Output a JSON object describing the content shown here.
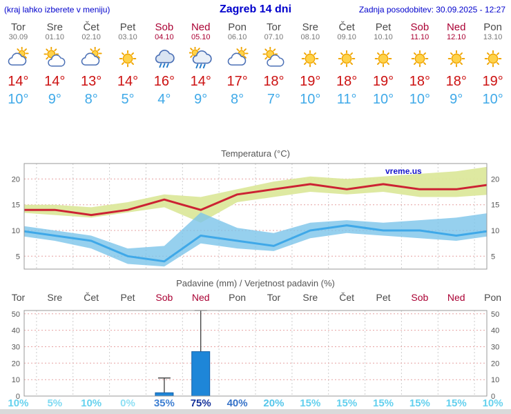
{
  "header": {
    "left_note": "(kraj lahko izberete v meniju)",
    "title": "Zagreb 14 dni",
    "last_update": "Zadnja posodobitev: 30.09.2025 - 12:27"
  },
  "watermark": "vreme.us",
  "colors": {
    "header_blue": "#0000CC",
    "weekend_red": "#AA0033",
    "day_gray": "#4A4A4A",
    "date_gray": "#777777",
    "tmax_red": "#CC1111",
    "tmin_blue": "#3FA9E8",
    "chart_title_gray": "#555555",
    "grid_pink": "#E6A0A0",
    "grid_gray": "#CCCCCC",
    "temp_max_line": "#CC2233",
    "temp_min_line": "#3FA8E8",
    "temp_max_band": "#DCE89C",
    "temp_min_band": "#7CC4EA",
    "precip_bar": "#1E86D8",
    "precip_bar_border": "#1360A8",
    "whisker": "#3A3A3A",
    "axis_text": "#555555",
    "plot_border": "#999999",
    "watermark_blue": "#1414CC"
  },
  "days": [
    {
      "name": "Tor",
      "date": "30.09",
      "weekend": false,
      "icon": "mostly-cloudy",
      "tmax_label": "14°",
      "tmin_label": "10°",
      "prob_label": "10%",
      "prob_color": "#66D2EE"
    },
    {
      "name": "Sre",
      "date": "01.10",
      "weekend": false,
      "icon": "partly-cloudy",
      "tmax_label": "14°",
      "tmin_label": "9°",
      "prob_label": "5%",
      "prob_color": "#7FDAF2"
    },
    {
      "name": "Čet",
      "date": "02.10",
      "weekend": false,
      "icon": "mostly-cloudy",
      "tmax_label": "13°",
      "tmin_label": "8°",
      "prob_label": "10%",
      "prob_color": "#66D2EE"
    },
    {
      "name": "Pet",
      "date": "03.10",
      "weekend": false,
      "icon": "sunny",
      "tmax_label": "14°",
      "tmin_label": "5°",
      "prob_label": "0%",
      "prob_color": "#8FE0F4"
    },
    {
      "name": "Sob",
      "date": "04.10",
      "weekend": true,
      "icon": "rain",
      "tmax_label": "16°",
      "tmin_label": "4°",
      "prob_label": "35%",
      "prob_color": "#3E7FD2"
    },
    {
      "name": "Ned",
      "date": "05.10",
      "weekend": true,
      "icon": "rain-sun",
      "tmax_label": "14°",
      "tmin_label": "9°",
      "prob_label": "75%",
      "prob_color": "#16339B"
    },
    {
      "name": "Pon",
      "date": "06.10",
      "weekend": false,
      "icon": "mostly-cloudy",
      "tmax_label": "17°",
      "tmin_label": "8°",
      "prob_label": "40%",
      "prob_color": "#3572C8"
    },
    {
      "name": "Tor",
      "date": "07.10",
      "weekend": false,
      "icon": "partly-cloudy",
      "tmax_label": "18°",
      "tmin_label": "7°",
      "prob_label": "20%",
      "prob_color": "#55C6EA"
    },
    {
      "name": "Sre",
      "date": "08.10",
      "weekend": false,
      "icon": "sunny",
      "tmax_label": "19°",
      "tmin_label": "10°",
      "prob_label": "15%",
      "prob_color": "#63D0EE"
    },
    {
      "name": "Čet",
      "date": "09.10",
      "weekend": false,
      "icon": "sunny",
      "tmax_label": "18°",
      "tmin_label": "11°",
      "prob_label": "15%",
      "prob_color": "#63D0EE"
    },
    {
      "name": "Pet",
      "date": "10.10",
      "weekend": false,
      "icon": "sunny",
      "tmax_label": "19°",
      "tmin_label": "10°",
      "prob_label": "15%",
      "prob_color": "#63D0EE"
    },
    {
      "name": "Sob",
      "date": "11.10",
      "weekend": true,
      "icon": "sunny",
      "tmax_label": "18°",
      "tmin_label": "10°",
      "prob_label": "15%",
      "prob_color": "#63D0EE"
    },
    {
      "name": "Ned",
      "date": "12.10",
      "weekend": true,
      "icon": "sunny",
      "tmax_label": "18°",
      "tmin_label": "9°",
      "prob_label": "15%",
      "prob_color": "#63D0EE"
    },
    {
      "name": "Pon",
      "date": "13.10",
      "weekend": false,
      "icon": "sunny",
      "tmax_label": "19°",
      "tmin_label": "10°",
      "prob_label": "10%",
      "prob_color": "#66D2EE"
    }
  ],
  "chart_data": [
    {
      "type": "line",
      "title": "Temperatura (°C)",
      "x": [
        "Tor 30.09",
        "Sre 01.10",
        "Čet 02.10",
        "Pet 03.10",
        "Sob 04.10",
        "Ned 05.10",
        "Pon 06.10",
        "Tor 07.10",
        "Sre 08.10",
        "Čet 09.10",
        "Pet 10.10",
        "Sob 11.10",
        "Ned 12.10",
        "Pon 13.10"
      ],
      "ylim": [
        2.5,
        23
      ],
      "yticks": [
        5,
        10,
        15,
        20
      ],
      "grid": true,
      "legend": "none",
      "watermark": "vreme.us",
      "series": [
        {
          "name": "max",
          "values": [
            14,
            14,
            13,
            14,
            16,
            14,
            17,
            18,
            19,
            18,
            19,
            18,
            18,
            19
          ]
        },
        {
          "name": "max_range_upper",
          "values": [
            15,
            15,
            14.5,
            15.5,
            17,
            16.5,
            18,
            19.5,
            20.5,
            20,
            20.5,
            21,
            21.5,
            22.5
          ]
        },
        {
          "name": "max_range_lower",
          "values": [
            13.5,
            13,
            12.5,
            13.5,
            14.5,
            11.5,
            15.5,
            16.5,
            17.5,
            17,
            17.5,
            16.5,
            16.5,
            17
          ]
        },
        {
          "name": "min",
          "values": [
            10,
            9,
            8,
            5,
            4,
            9,
            8,
            7,
            10,
            11,
            10,
            10,
            9,
            10
          ]
        },
        {
          "name": "min_range_upper",
          "values": [
            11,
            10,
            9,
            6.5,
            7,
            13.5,
            10.5,
            9.5,
            11.5,
            12,
            11.5,
            12,
            12.5,
            13.5
          ]
        },
        {
          "name": "min_range_lower",
          "values": [
            9,
            8,
            6.5,
            3.5,
            3,
            7.5,
            6.5,
            6,
            8.5,
            9.5,
            9,
            8.5,
            8,
            9
          ]
        }
      ]
    },
    {
      "type": "bar",
      "title": "Padavine (mm) / Verjetnost padavin (%)",
      "categories": [
        "Tor",
        "Sre",
        "Čet",
        "Pet",
        "Sob",
        "Ned",
        "Pon",
        "Tor",
        "Sre",
        "Čet",
        "Pet",
        "Sob",
        "Ned",
        "Pon"
      ],
      "precip_mm": [
        0,
        0,
        0,
        0,
        2,
        27,
        0,
        0,
        0,
        0,
        0,
        0,
        0,
        0
      ],
      "precip_max_mm": [
        0,
        0,
        0,
        0,
        11,
        52,
        0,
        0,
        0,
        0,
        0,
        0,
        0,
        0
      ],
      "probability_pct": [
        10,
        5,
        10,
        0,
        35,
        75,
        40,
        20,
        15,
        15,
        15,
        15,
        15,
        10
      ],
      "ylim": [
        0,
        52
      ],
      "yticks": [
        0,
        10,
        20,
        30,
        40,
        50
      ],
      "grid": true,
      "legend": "none"
    }
  ]
}
